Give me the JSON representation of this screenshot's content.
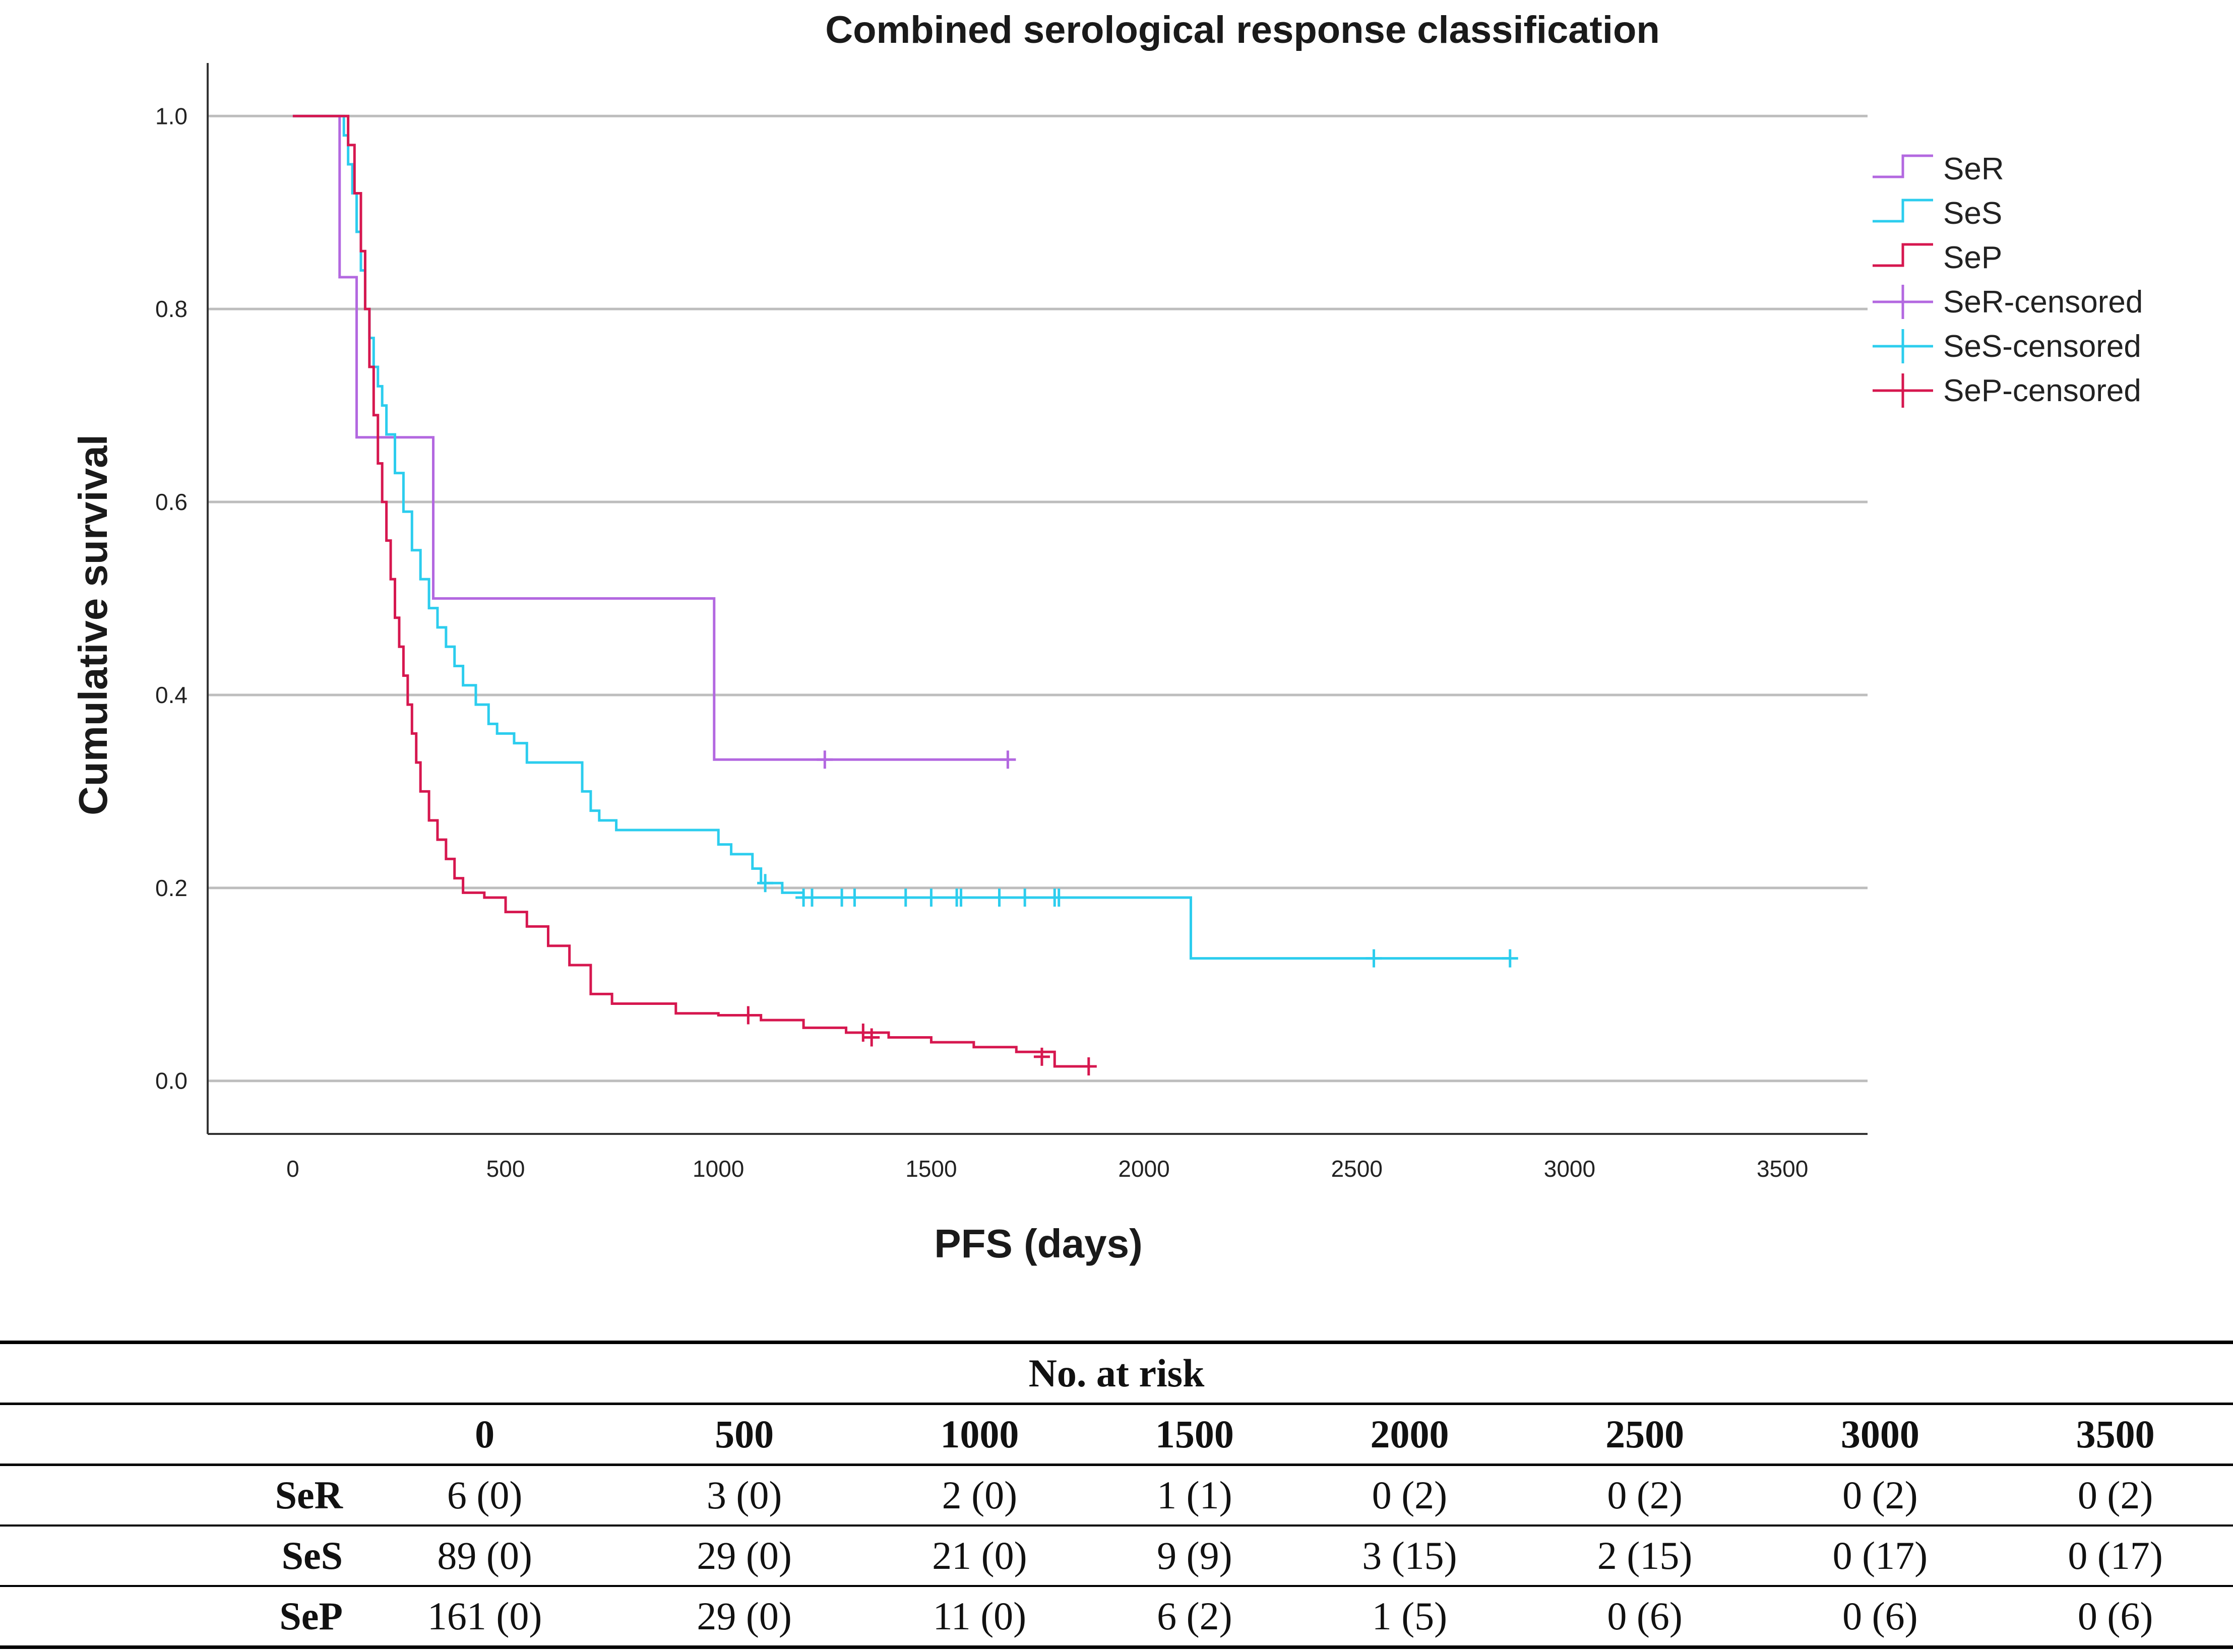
{
  "chart_data": {
    "type": "line",
    "subtype": "kaplan-meier step",
    "title": "Combined serological response classification",
    "xlabel": "PFS (days)",
    "ylabel": "Cumulative survival",
    "xlim": [
      -200,
      3700
    ],
    "ylim": [
      -0.055,
      1.055
    ],
    "xticks": [
      0,
      500,
      1000,
      1500,
      2000,
      2500,
      3000,
      3500
    ],
    "yticks": [
      0.0,
      0.2,
      0.4,
      0.6,
      0.8,
      1.0
    ],
    "xtick_labels": [
      "0",
      "500",
      "1000",
      "1500",
      "2000",
      "2500",
      "3000",
      "3500"
    ],
    "ytick_labels": [
      "0.0",
      "0.2",
      "0.4",
      "0.6",
      "0.8",
      "1.0"
    ],
    "grid": "horizontal",
    "legend_position": "right",
    "legend": [
      "SeR",
      "SeS",
      "SeP",
      "SeR-censored",
      "SeS-censored",
      "SeP-censored"
    ],
    "series": [
      {
        "name": "SeR",
        "color": "#b368e0",
        "x": [
          0,
          110,
          110,
          150,
          150,
          330,
          330,
          990,
          990,
          1680
        ],
        "y": [
          1.0,
          1.0,
          0.833,
          0.833,
          0.667,
          0.667,
          0.5,
          0.5,
          0.333,
          0.333
        ],
        "censored": [
          [
            1250,
            0.333
          ],
          [
            1680,
            0.333
          ]
        ]
      },
      {
        "name": "SeS",
        "color": "#2ccdee",
        "x": [
          0,
          100,
          120,
          130,
          140,
          150,
          160,
          170,
          180,
          190,
          200,
          210,
          220,
          240,
          260,
          280,
          300,
          320,
          340,
          360,
          380,
          400,
          430,
          460,
          480,
          520,
          550,
          600,
          680,
          700,
          720,
          760,
          800,
          900,
          1000,
          1030,
          1080,
          1100,
          1150,
          1200,
          2110,
          2110,
          2860
        ],
        "y": [
          1.0,
          1.0,
          0.98,
          0.95,
          0.92,
          0.88,
          0.84,
          0.8,
          0.77,
          0.74,
          0.72,
          0.7,
          0.67,
          0.63,
          0.59,
          0.55,
          0.52,
          0.49,
          0.47,
          0.45,
          0.43,
          0.41,
          0.39,
          0.37,
          0.36,
          0.35,
          0.33,
          0.33,
          0.3,
          0.28,
          0.27,
          0.26,
          0.26,
          0.26,
          0.245,
          0.235,
          0.22,
          0.205,
          0.195,
          0.19,
          0.19,
          0.127,
          0.127
        ],
        "censored": [
          [
            1110,
            0.205
          ],
          [
            1200,
            0.19
          ],
          [
            1220,
            0.19
          ],
          [
            1290,
            0.19
          ],
          [
            1320,
            0.19
          ],
          [
            1440,
            0.19
          ],
          [
            1500,
            0.19
          ],
          [
            1560,
            0.19
          ],
          [
            1570,
            0.19
          ],
          [
            1660,
            0.19
          ],
          [
            1720,
            0.19
          ],
          [
            1790,
            0.19
          ],
          [
            1800,
            0.19
          ],
          [
            2540,
            0.127
          ],
          [
            2860,
            0.127
          ]
        ]
      },
      {
        "name": "SeP",
        "color": "#d6174f",
        "x": [
          0,
          110,
          130,
          145,
          160,
          170,
          180,
          190,
          200,
          210,
          220,
          230,
          240,
          250,
          260,
          270,
          280,
          290,
          300,
          320,
          340,
          360,
          380,
          400,
          450,
          500,
          550,
          600,
          650,
          700,
          750,
          800,
          900,
          1000,
          1100,
          1200,
          1300,
          1400,
          1500,
          1600,
          1700,
          1790,
          1870
        ],
        "y": [
          1.0,
          1.0,
          0.97,
          0.92,
          0.86,
          0.8,
          0.74,
          0.69,
          0.64,
          0.6,
          0.56,
          0.52,
          0.48,
          0.45,
          0.42,
          0.39,
          0.36,
          0.33,
          0.3,
          0.27,
          0.25,
          0.23,
          0.21,
          0.195,
          0.19,
          0.175,
          0.16,
          0.14,
          0.12,
          0.09,
          0.08,
          0.08,
          0.07,
          0.068,
          0.063,
          0.055,
          0.05,
          0.045,
          0.04,
          0.035,
          0.03,
          0.015,
          0.015
        ],
        "censored": [
          [
            1070,
            0.068
          ],
          [
            1340,
            0.05
          ],
          [
            1360,
            0.045
          ],
          [
            1760,
            0.025
          ],
          [
            1870,
            0.015
          ]
        ]
      }
    ]
  },
  "risk_table": {
    "caption": "No. at risk",
    "columns": [
      "0",
      "500",
      "1000",
      "1500",
      "2000",
      "2500",
      "3000",
      "3500"
    ],
    "rows": [
      {
        "label": "SeR",
        "values": [
          "6 (0)",
          "3 (0)",
          "2 (0)",
          "1 (1)",
          "0 (2)",
          "0 (2)",
          "0 (2)",
          "0 (2)"
        ]
      },
      {
        "label": "SeS",
        "values": [
          "89 (0)",
          "29 (0)",
          "21 (0)",
          "9 (9)",
          "3 (15)",
          "2 (15)",
          "0 (17)",
          "0 (17)"
        ]
      },
      {
        "label": "SeP",
        "values": [
          "161 (0)",
          "29 (0)",
          "11 (0)",
          "6 (2)",
          "1 (5)",
          "0 (6)",
          "0 (6)",
          "0 (6)"
        ]
      }
    ]
  }
}
